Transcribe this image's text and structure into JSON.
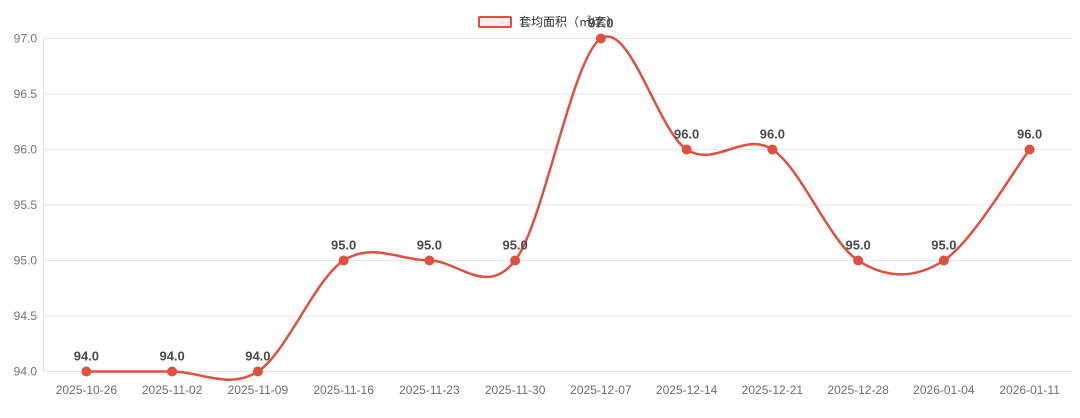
{
  "chart_data": {
    "type": "line",
    "title": "",
    "legend": {
      "label": "套均面积（㎡/套）",
      "position": "top-center"
    },
    "categories": [
      "2025-10-26",
      "2025-11-02",
      "2025-11-09",
      "2025-11-16",
      "2025-11-23",
      "2025-11-30",
      "2025-12-07",
      "2025-12-14",
      "2025-12-21",
      "2025-12-28",
      "2026-01-04",
      "2026-01-11"
    ],
    "series": [
      {
        "name": "套均面积（㎡/套）",
        "values": [
          94.0,
          94.0,
          94.0,
          95.0,
          95.0,
          95.0,
          97.0,
          96.0,
          96.0,
          95.0,
          95.0,
          96.0
        ],
        "labels": [
          "94.0",
          "94.0",
          "94.0",
          "95.0",
          "95.0",
          "95.0",
          "97.0",
          "96.0",
          "96.0",
          "95.0",
          "95.0",
          "96.0"
        ],
        "smooth": true,
        "show_point_labels": true
      }
    ],
    "xlabel": "",
    "ylabel": "",
    "ylim": [
      94.0,
      97.0
    ],
    "yticks": [
      "94.0",
      "94.5",
      "95.0",
      "95.5",
      "96.0",
      "96.5",
      "97.0"
    ],
    "grid": true,
    "colors": {
      "series": "#e0503f",
      "grid_line": "#e8e8e8",
      "axis_line": "#e0e0e0",
      "tick_label": "#757575",
      "x_label": "#6e6e6e",
      "data_label": "#4a4a4a",
      "legend_text": "#333333",
      "legend_swatch_fill": "#f6eeec",
      "background": "#ffffff"
    }
  }
}
